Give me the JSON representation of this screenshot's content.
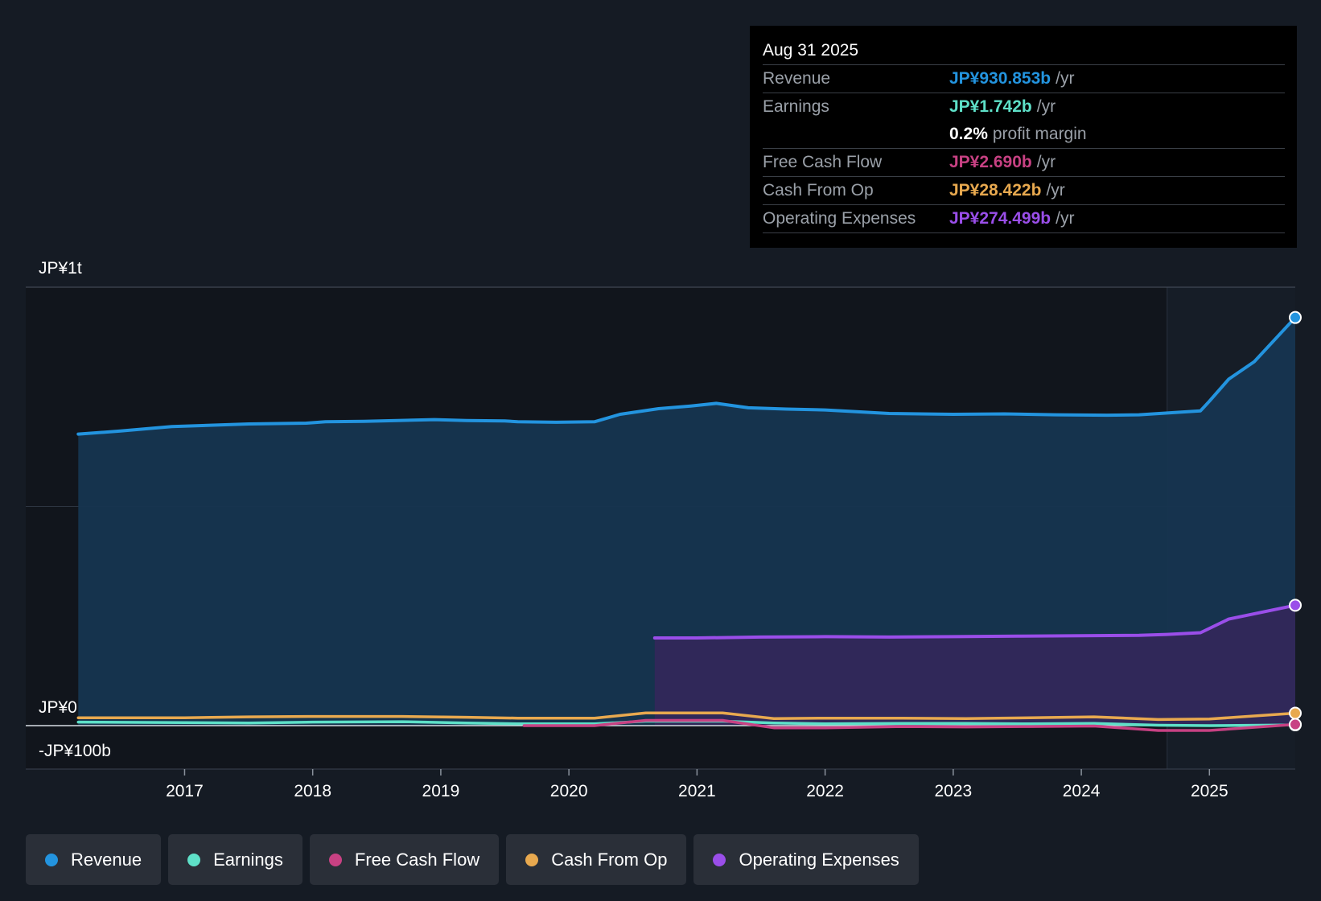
{
  "chart_data": {
    "type": "area",
    "y_labels": {
      "top": "JP¥1t",
      "zero": "JP¥0",
      "bottom": "-JP¥100b"
    },
    "ylim": [
      -100,
      1000
    ],
    "x_ticks": [
      "2017",
      "2018",
      "2019",
      "2020",
      "2021",
      "2022",
      "2023",
      "2024",
      "2025"
    ],
    "x_tick_values": [
      2017,
      2018,
      2019,
      2020,
      2021,
      2022,
      2023,
      2024,
      2025
    ],
    "xlim": [
      2015.76,
      2025.67
    ],
    "forecast_start": 2024.67,
    "series": [
      {
        "name": "Revenue",
        "color": "#2394df",
        "fill": "#163550",
        "x": [
          2016.17,
          2016.5,
          2016.9,
          2017.5,
          2017.95,
          2018.1,
          2018.4,
          2018.95,
          2019.2,
          2019.5,
          2019.6,
          2019.9,
          2020.2,
          2020.4,
          2020.7,
          2020.95,
          2021.15,
          2021.4,
          2021.7,
          2022.0,
          2022.5,
          2023.0,
          2023.4,
          2023.8,
          2024.2,
          2024.45,
          2024.67,
          2024.93,
          2025.0,
          2025.15,
          2025.35,
          2025.67
        ],
        "values": [
          665,
          672,
          682,
          688,
          690,
          693,
          694,
          698,
          696,
          695,
          693,
          692,
          693,
          710,
          723,
          729,
          735,
          725,
          722,
          720,
          712,
          710,
          711,
          709,
          708,
          709,
          713,
          718,
          740,
          790,
          830,
          930.853
        ]
      },
      {
        "name": "Operating Expenses",
        "color": "#9a4ee9",
        "fill": "#32285a",
        "x": [
          2020.67,
          2021.0,
          2021.5,
          2022.0,
          2022.5,
          2023.0,
          2023.5,
          2024.0,
          2024.45,
          2024.67,
          2024.93,
          2025.15,
          2025.67
        ],
        "values": [
          200,
          200,
          202,
          203,
          202,
          203,
          204,
          205,
          206,
          208,
          212,
          243,
          274.499
        ]
      },
      {
        "name": "Cash From Op",
        "color": "#e8a94f",
        "x": [
          2016.17,
          2017.0,
          2017.5,
          2018.0,
          2018.7,
          2019.2,
          2019.6,
          2020.2,
          2020.6,
          2021.2,
          2021.6,
          2022.0,
          2022.6,
          2023.1,
          2023.6,
          2024.1,
          2024.6,
          2025.0,
          2025.67
        ],
        "values": [
          18,
          18,
          20,
          21,
          21,
          19,
          17,
          17,
          29,
          29,
          16,
          17,
          17,
          16,
          18,
          20,
          14,
          15,
          28.422
        ]
      },
      {
        "name": "Earnings",
        "color": "#5ee0c8",
        "x": [
          2016.17,
          2017.0,
          2017.5,
          2018.0,
          2018.7,
          2019.2,
          2019.6,
          2020.2,
          2020.6,
          2021.2,
          2021.6,
          2022.0,
          2022.6,
          2023.1,
          2023.6,
          2024.1,
          2024.6,
          2025.0,
          2025.67
        ],
        "values": [
          8,
          7,
          6,
          8,
          9,
          6,
          4,
          4,
          10,
          10,
          6,
          4,
          5,
          5,
          4,
          5,
          1,
          0,
          1.742
        ]
      },
      {
        "name": "Free Cash Flow",
        "color": "#c84183",
        "x": [
          2019.65,
          2020.2,
          2020.6,
          2021.2,
          2021.6,
          2022.0,
          2022.6,
          2023.1,
          2023.6,
          2024.1,
          2024.6,
          2025.0,
          2025.67
        ],
        "values": [
          0,
          0,
          12,
          12,
          -5,
          -5,
          -2,
          -3,
          -2,
          -1,
          -11,
          -11,
          2.69
        ]
      }
    ]
  },
  "tooltip": {
    "date": "Aug 31 2025",
    "rows": [
      {
        "label": "Revenue",
        "value": "JP¥930.853b",
        "unit": "/yr",
        "color": "#2394df"
      },
      {
        "label": "Earnings",
        "value": "JP¥1.742b",
        "unit": "/yr",
        "color": "#5ee0c8"
      },
      {
        "label": "",
        "value": "0.2%",
        "unit": "profit margin",
        "color": "#ffffff"
      },
      {
        "label": "Free Cash Flow",
        "value": "JP¥2.690b",
        "unit": "/yr",
        "color": "#c84183"
      },
      {
        "label": "Cash From Op",
        "value": "JP¥28.422b",
        "unit": "/yr",
        "color": "#e8a94f"
      },
      {
        "label": "Operating Expenses",
        "value": "JP¥274.499b",
        "unit": "/yr",
        "color": "#9a4ee9"
      }
    ]
  },
  "legend": [
    {
      "label": "Revenue",
      "color": "#2394df"
    },
    {
      "label": "Earnings",
      "color": "#5ee0c8"
    },
    {
      "label": "Free Cash Flow",
      "color": "#c84183"
    },
    {
      "label": "Cash From Op",
      "color": "#e8a94f"
    },
    {
      "label": "Operating Expenses",
      "color": "#9a4ee9"
    }
  ]
}
